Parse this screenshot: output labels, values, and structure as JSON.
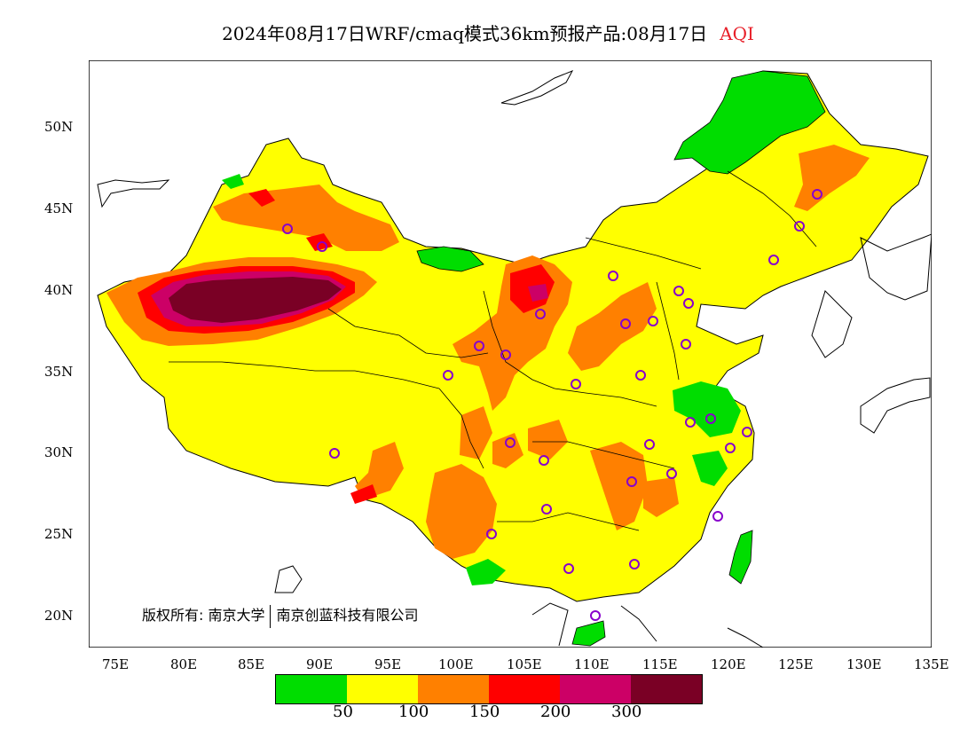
{
  "title": {
    "main": "2024年08月17日WRF/cmaq模式36km预报产品:08月17日",
    "variable": "AQI"
  },
  "colors": {
    "title_variable": "#e8202a",
    "levels": [
      "#00dd00",
      "#ffff00",
      "#ff8000",
      "#ff0000",
      "#cc0066",
      "#7a0025"
    ]
  },
  "y_axis": {
    "ticks": [
      "50N",
      "45N",
      "40N",
      "35N",
      "30N",
      "25N",
      "20N"
    ]
  },
  "x_axis": {
    "ticks": [
      "75E",
      "80E",
      "85E",
      "90E",
      "95E",
      "100E",
      "105E",
      "110E",
      "115E",
      "120E",
      "125E",
      "130E",
      "135E"
    ]
  },
  "copyright": {
    "left": "版权所有: 南京大学",
    "right": "南京创蓝科技有限公司"
  },
  "legend": {
    "labels": [
      "50",
      "100",
      "150",
      "200",
      "300"
    ]
  }
}
